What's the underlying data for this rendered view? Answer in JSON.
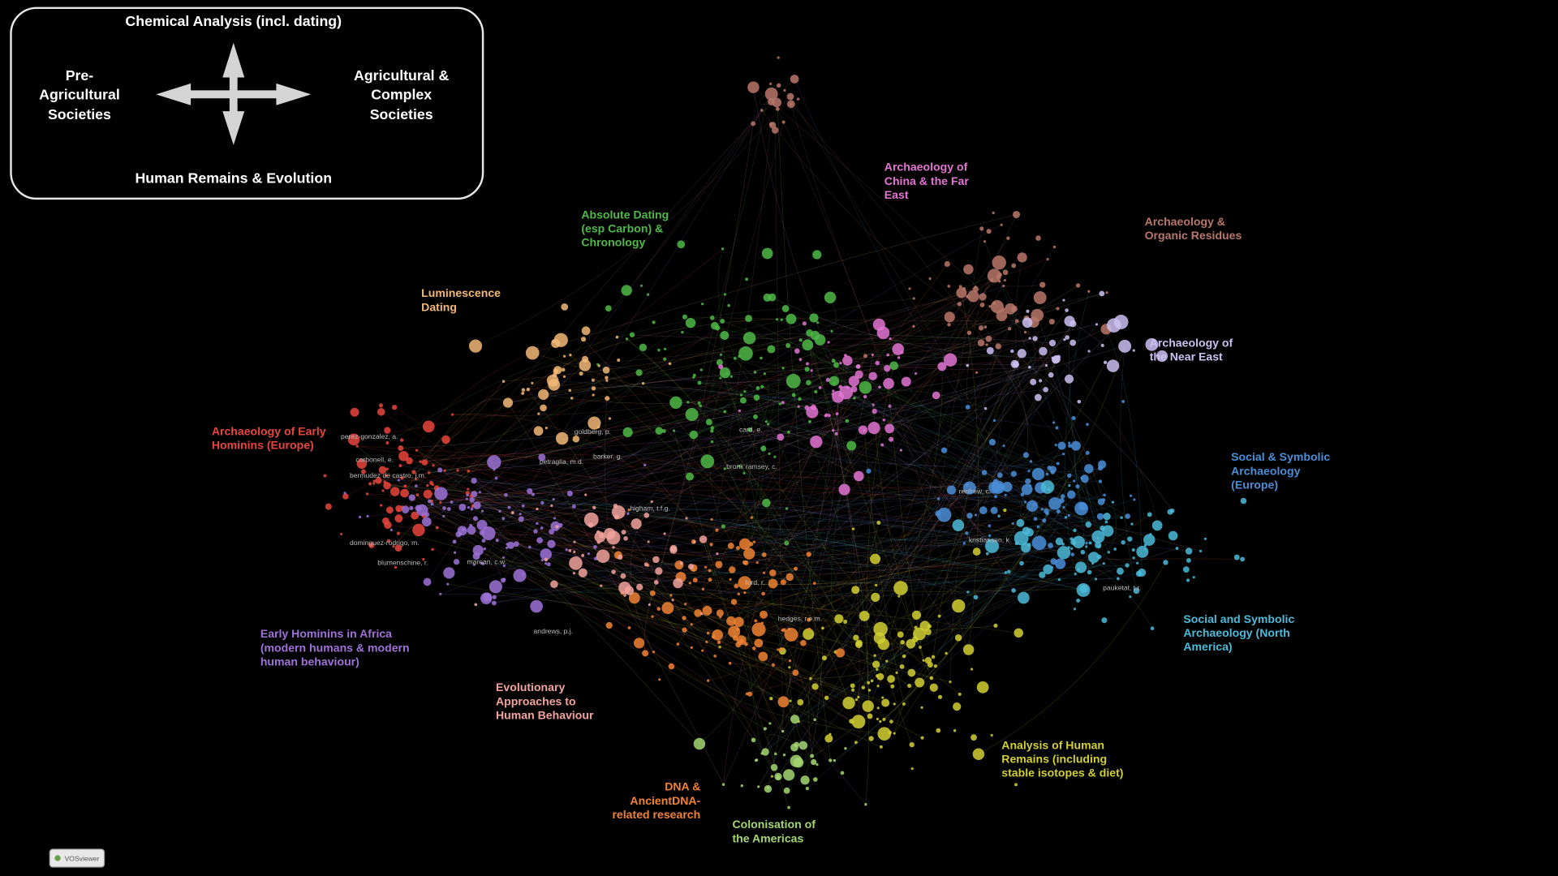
{
  "legend": {
    "top": "Chemical Analysis (incl. dating)",
    "bottom": "Human Remains & Evolution",
    "left": [
      "Pre-",
      "Agricultural",
      "Societies"
    ],
    "right": [
      "Agricultural &",
      "Complex",
      "Societies"
    ]
  },
  "clusters": [
    {
      "label": [
        "Archaeology of Early",
        "Hominins (Europe)"
      ],
      "color": "#e8453c"
    },
    {
      "label": [
        "Early Hominins in Africa",
        "(modern humans & modern",
        "human behaviour)"
      ],
      "color": "#9e72d8"
    },
    {
      "label": [
        "Luminescence",
        "Dating"
      ],
      "color": "#f2b877"
    },
    {
      "label": [
        "Absolute Dating",
        "(esp Carbon) &",
        "Chronology"
      ],
      "color": "#4fb848"
    },
    {
      "label": [
        "Archaeology of",
        "China & the Far",
        "East"
      ],
      "color": "#e274d2"
    },
    {
      "label": [
        "Archaeology &",
        "Organic Residues"
      ],
      "color": "#b8776a"
    },
    {
      "label": [
        "Archaeology of",
        "the Near East"
      ],
      "color": "#cdbff2"
    },
    {
      "label": [
        "Social & Symbolic",
        "Archaeology",
        "(Europe)"
      ],
      "color": "#4a8ed8"
    },
    {
      "label": [
        "Social and Symbolic",
        "Archaeology (North",
        "America)"
      ],
      "color": "#4cbad8"
    },
    {
      "label": [
        "Analysis of Human",
        "Remains (including",
        "stable isotopes & diet)"
      ],
      "color": "#d2d033"
    },
    {
      "label": [
        "Colonisation of",
        "the Americas"
      ],
      "color": "#a6d672"
    },
    {
      "label": [
        "DNA &",
        "AncientDNA-",
        "related research"
      ],
      "color": "#f08234"
    },
    {
      "label": [
        "Evolutionary",
        "Approaches to",
        "Human Behaviour"
      ],
      "color": "#f2a39e"
    }
  ],
  "node_labels": [
    "bronk ramsey, c.",
    "higham, t.f.g.",
    "dominguez-rodrigo, m.",
    "carbonell, e.",
    "bermudez de castro, j.m.",
    "renfrew, c.",
    "marean, c.w.",
    "perez-gonzalez, a.",
    "blumenschine, r.",
    "petraglia, m.d.",
    "goldberg, p.",
    "barker, g.",
    "card, e.",
    "ford, r.",
    "kristiansen, k.",
    "pauketat, t.r.",
    "hedges, r.e.m.",
    "andrews, p.j."
  ],
  "badge": "VOSviewer"
}
